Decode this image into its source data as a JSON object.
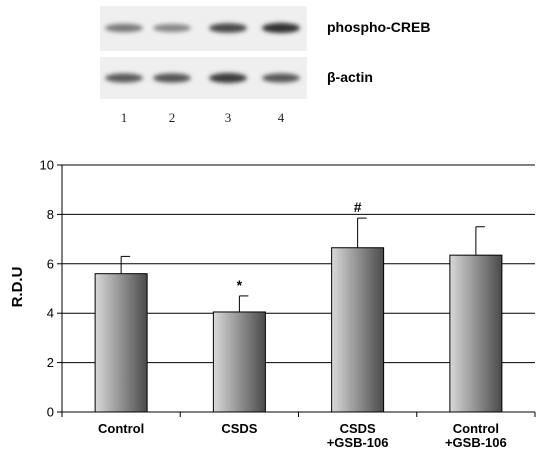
{
  "blot": {
    "rows": [
      {
        "label": "phospho-CREB",
        "intensities": [
          0.45,
          0.38,
          0.72,
          0.85
        ]
      },
      {
        "label": "β-actin",
        "intensities": [
          0.62,
          0.66,
          0.8,
          0.64
        ]
      }
    ],
    "lanes": [
      "1",
      "2",
      "3",
      "4"
    ]
  },
  "chart_data": {
    "type": "bar",
    "categories": [
      [
        "Control"
      ],
      [
        "CSDS"
      ],
      [
        "CSDS",
        "+GSB-106"
      ],
      [
        "Control",
        "+GSB-106"
      ]
    ],
    "series": [
      {
        "values": [
          5.6,
          4.05,
          6.65,
          6.35
        ],
        "errors": [
          0.7,
          0.65,
          1.2,
          1.15
        ]
      }
    ],
    "annotations": [
      "",
      "*",
      "#",
      ""
    ],
    "ylabel": "R.D.U",
    "xlabel": "",
    "title": "",
    "ylim": [
      0,
      10
    ],
    "yticks": [
      0,
      2,
      4,
      6,
      8,
      10
    ],
    "grid": true,
    "legend": "none",
    "colors": {
      "bar_light": "#d9d9d9",
      "bar_dark": "#4a4a4a",
      "grid": "#000000",
      "axis": "#000000"
    }
  }
}
